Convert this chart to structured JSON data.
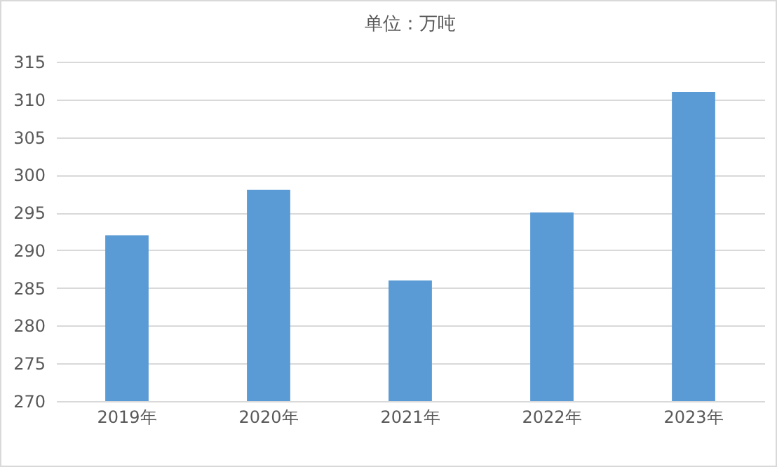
{
  "chart_data": {
    "type": "bar",
    "title": "单位：万吨",
    "categories": [
      "2019年",
      "2020年",
      "2021年",
      "2022年",
      "2023年"
    ],
    "values": [
      292,
      298,
      286,
      295,
      311
    ],
    "color": "#5b9bd5",
    "ylim": [
      270,
      315
    ],
    "yticks": [
      270,
      275,
      280,
      285,
      290,
      295,
      300,
      305,
      310,
      315
    ],
    "grid": "y"
  }
}
